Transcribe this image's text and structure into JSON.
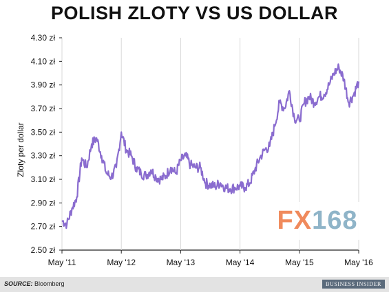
{
  "chart_data": {
    "type": "line",
    "title": "POLISH ZLOTY VS US DOLLAR",
    "ylabel": "Zloty per dollar",
    "xlabel": "",
    "ylim": [
      2.5,
      4.3
    ],
    "xlim": [
      "2011-05",
      "2016-05"
    ],
    "grid": "vertical",
    "y_ticks": [
      2.5,
      2.7,
      2.9,
      3.1,
      3.3,
      3.5,
      3.7,
      3.9,
      4.1,
      4.3
    ],
    "y_tick_labels": [
      "2.50 zł",
      "2.70 zł",
      "2.90 zł",
      "3.10 zł",
      "3.30 zł",
      "3.50 zł",
      "3.70 zł",
      "3.90 zł",
      "4.10 zł",
      "4.30 zł"
    ],
    "x_ticks": [
      "2011-05",
      "2012-05",
      "2013-05",
      "2014-05",
      "2015-05",
      "2016-05"
    ],
    "x_tick_labels": [
      "May '11",
      "May '12",
      "May '13",
      "May '14",
      "May '15",
      "May '16"
    ],
    "line_color": "#8a6ccf",
    "series": [
      {
        "x": [
          "2011-05",
          "2011-06",
          "2011-07",
          "2011-08",
          "2011-09",
          "2011-10",
          "2011-11",
          "2011-12",
          "2012-01",
          "2012-02",
          "2012-03",
          "2012-04",
          "2012-05",
          "2012-06",
          "2012-07",
          "2012-08",
          "2012-09",
          "2012-10",
          "2012-11",
          "2012-12",
          "2013-01",
          "2013-02",
          "2013-03",
          "2013-04",
          "2013-05",
          "2013-06",
          "2013-07",
          "2013-08",
          "2013-09",
          "2013-10",
          "2013-11",
          "2013-12",
          "2014-01",
          "2014-02",
          "2014-03",
          "2014-04",
          "2014-05",
          "2014-06",
          "2014-07",
          "2014-08",
          "2014-09",
          "2014-10",
          "2014-11",
          "2014-12",
          "2015-01",
          "2015-02",
          "2015-03",
          "2015-04",
          "2015-05",
          "2015-06",
          "2015-07",
          "2015-08",
          "2015-09",
          "2015-10",
          "2015-11",
          "2015-12",
          "2016-01",
          "2016-02",
          "2016-03",
          "2016-04",
          "2016-05"
        ],
        "values": [
          2.75,
          2.72,
          2.85,
          2.95,
          3.28,
          3.2,
          3.4,
          3.45,
          3.3,
          3.15,
          3.12,
          3.2,
          3.5,
          3.35,
          3.3,
          3.2,
          3.15,
          3.13,
          3.18,
          3.12,
          3.1,
          3.13,
          3.2,
          3.15,
          3.26,
          3.3,
          3.22,
          3.2,
          3.2,
          3.07,
          3.05,
          3.04,
          3.07,
          3.03,
          3.02,
          3.03,
          3.04,
          3.03,
          3.07,
          3.18,
          3.28,
          3.35,
          3.38,
          3.55,
          3.75,
          3.7,
          3.85,
          3.62,
          3.6,
          3.75,
          3.8,
          3.75,
          3.8,
          3.82,
          3.9,
          4.0,
          4.05,
          3.95,
          3.75,
          3.82,
          3.93
        ]
      }
    ]
  },
  "footer": {
    "source_label": "SOURCE:",
    "source_value": "Bloomberg",
    "logo_text": "BUSINESS INSIDER"
  },
  "watermark": {
    "prefix": "FX",
    "number": "168"
  }
}
